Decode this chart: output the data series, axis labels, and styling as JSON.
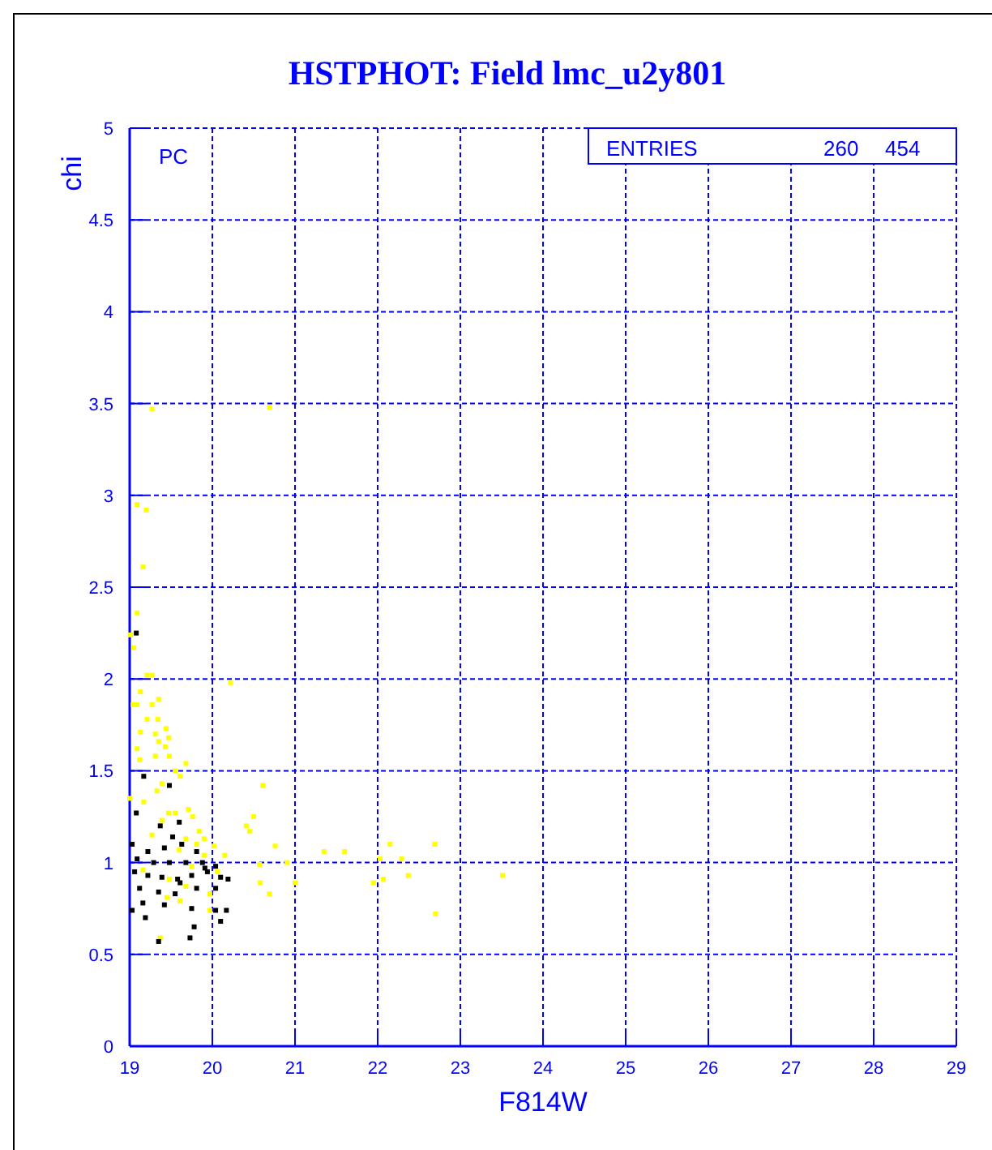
{
  "chart_data": {
    "type": "scatter",
    "title": "HSTPHOT: Field lmc_u2y801",
    "xlabel": "F814W",
    "ylabel": "chi",
    "xlim": [
      19,
      29
    ],
    "xticks": [
      19,
      20,
      21,
      22,
      23,
      24,
      25,
      26,
      27,
      28,
      29
    ],
    "ylim": [
      0,
      5
    ],
    "yticks": [
      0,
      0.5,
      1,
      1.5,
      2,
      2.5,
      3,
      3.5,
      4,
      4.5,
      5
    ],
    "grid": true,
    "marker": "square",
    "annotations": [
      "PC",
      "ENTRIES",
      "260",
      "454"
    ],
    "series": [
      {
        "color": "#ffff00",
        "x": [
          19.05,
          19.21,
          19.27,
          19.13,
          19.35,
          19.04,
          19.09,
          19.27,
          19.34,
          19.21,
          19.44,
          19.13,
          19.31,
          19.47,
          19.35,
          19.43,
          19.09,
          19.31,
          19.48,
          19.12,
          19.68,
          19.55,
          19.61,
          19.39,
          19.33,
          19.0,
          19.17,
          19.71,
          19.47,
          19.55,
          19.76,
          19.39,
          19.27,
          19.84,
          19.68,
          19.9,
          19.81,
          20.02,
          19.6,
          20.15,
          19.9,
          19.75,
          19.16,
          19.48,
          20.06,
          19.68,
          19.97,
          19.45,
          19.61,
          19.97,
          19.37,
          20.22,
          20.61,
          20.5,
          20.41,
          20.45,
          20.76,
          21.35,
          20.57,
          20.9,
          20.58,
          20.69,
          21.0,
          21.6,
          22.15,
          22.69,
          22.29,
          22.03,
          22.37,
          22.07,
          21.95,
          23.51,
          22.7,
          19.27,
          20.69,
          19.09,
          19.2,
          19.16,
          19.09,
          19.01
        ],
        "values": [
          2.17,
          2.02,
          2.02,
          1.93,
          1.89,
          1.86,
          1.86,
          1.86,
          1.78,
          1.78,
          1.73,
          1.71,
          1.7,
          1.68,
          1.66,
          1.63,
          1.62,
          1.58,
          1.58,
          1.56,
          1.54,
          1.5,
          1.47,
          1.43,
          1.39,
          1.35,
          1.33,
          1.29,
          1.27,
          1.27,
          1.25,
          1.23,
          1.15,
          1.17,
          1.13,
          1.13,
          1.1,
          1.09,
          1.07,
          1.04,
          1.04,
          0.98,
          0.96,
          0.91,
          0.95,
          0.87,
          0.83,
          0.81,
          0.79,
          0.74,
          0.59,
          1.98,
          1.42,
          1.25,
          1.2,
          1.17,
          1.09,
          1.06,
          0.99,
          1.0,
          0.89,
          0.83,
          0.89,
          1.06,
          1.1,
          1.1,
          1.02,
          1.02,
          0.93,
          0.91,
          0.89,
          0.93,
          0.72,
          3.47,
          3.48,
          2.95,
          2.92,
          2.61,
          2.36,
          2.24
        ]
      },
      {
        "color": "#000000",
        "x": [
          19.08,
          19.17,
          19.48,
          19.08,
          19.37,
          19.6,
          19.52,
          19.03,
          19.22,
          19.42,
          19.63,
          19.81,
          19.09,
          19.29,
          19.48,
          19.68,
          19.88,
          20.04,
          19.06,
          19.22,
          19.39,
          19.58,
          19.75,
          19.94,
          20.1,
          20.19,
          19.12,
          19.35,
          19.55,
          19.81,
          20.04,
          19.16,
          19.42,
          19.75,
          20.04,
          20.17,
          19.03,
          19.19,
          19.78,
          19.73,
          19.35,
          20.1,
          19.91,
          19.61
        ],
        "values": [
          2.25,
          1.47,
          1.42,
          1.27,
          1.2,
          1.22,
          1.14,
          1.1,
          1.06,
          1.08,
          1.1,
          1.06,
          1.02,
          1.0,
          1.0,
          1.0,
          1.0,
          0.98,
          0.95,
          0.93,
          0.92,
          0.91,
          0.93,
          0.95,
          0.92,
          0.91,
          0.86,
          0.84,
          0.83,
          0.86,
          0.86,
          0.78,
          0.77,
          0.75,
          0.74,
          0.74,
          0.74,
          0.7,
          0.65,
          0.59,
          0.57,
          0.68,
          0.97,
          0.89
        ]
      }
    ]
  }
}
